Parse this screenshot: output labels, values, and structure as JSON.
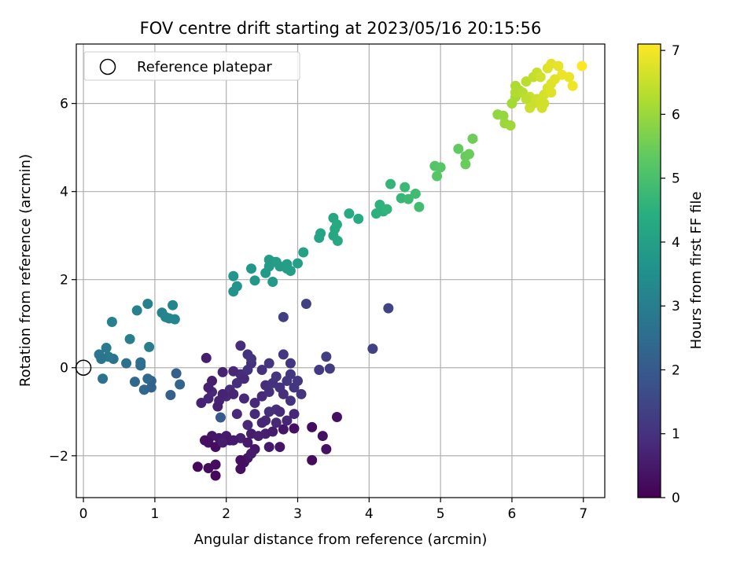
{
  "chart_data": {
    "type": "scatter",
    "title": "FOV centre drift starting at 2023/05/16 20:15:56",
    "xlabel": "Angular distance from reference (arcmin)",
    "ylabel": "Rotation from reference (arcmin)",
    "xlim": [
      -0.1,
      7.3
    ],
    "ylim": [
      -2.95,
      7.35
    ],
    "x_ticks": [
      0,
      1,
      2,
      3,
      4,
      5,
      6,
      7
    ],
    "x_tick_labels": [
      "0",
      "1",
      "2",
      "3",
      "4",
      "5",
      "6",
      "7"
    ],
    "y_ticks": [
      -2,
      0,
      2,
      4,
      6
    ],
    "y_tick_labels": [
      "−2",
      "0",
      "2",
      "4",
      "6"
    ],
    "grid": true,
    "legend": {
      "placement": "upper-left",
      "entries": [
        {
          "label": "Reference platepar",
          "marker": "open-circle"
        }
      ]
    },
    "reference_point": {
      "x": 0,
      "y": 0
    },
    "colorbar": {
      "label": "Hours from first FF file",
      "colormap": "viridis",
      "range": [
        0,
        7.1
      ],
      "ticks": [
        0,
        1,
        2,
        3,
        4,
        5,
        6,
        7
      ],
      "tick_labels": [
        "0",
        "1",
        "2",
        "3",
        "4",
        "5",
        "6",
        "7"
      ]
    },
    "points": [
      [
        1.6,
        -2.25,
        0.15
      ],
      [
        1.75,
        -2.28,
        0.2
      ],
      [
        1.85,
        -2.45,
        0.15
      ],
      [
        1.85,
        -2.2,
        0.25
      ],
      [
        2.2,
        -2.3,
        0.3
      ],
      [
        2.25,
        -2.15,
        0.35
      ],
      [
        2.3,
        -2.05,
        0.4
      ],
      [
        2.2,
        -2.1,
        0.3
      ],
      [
        1.7,
        -1.65,
        0.35
      ],
      [
        1.8,
        -1.55,
        0.4
      ],
      [
        1.75,
        -1.7,
        0.3
      ],
      [
        1.85,
        -1.8,
        0.25
      ],
      [
        1.9,
        -1.6,
        0.45
      ],
      [
        2.0,
        -1.55,
        0.5
      ],
      [
        2.05,
        -1.65,
        0.4
      ],
      [
        1.95,
        -1.7,
        0.55
      ],
      [
        2.2,
        -1.6,
        0.6
      ],
      [
        2.1,
        -1.65,
        0.5
      ],
      [
        2.3,
        -1.7,
        0.5
      ],
      [
        2.35,
        -1.5,
        0.55
      ],
      [
        2.45,
        -1.55,
        0.6
      ],
      [
        2.4,
        -1.85,
        0.45
      ],
      [
        2.35,
        -1.95,
        0.5
      ],
      [
        2.55,
        -1.5,
        0.6
      ],
      [
        2.65,
        -1.45,
        0.55
      ],
      [
        2.75,
        -1.8,
        0.4
      ],
      [
        2.6,
        -1.8,
        0.5
      ],
      [
        2.8,
        -1.4,
        0.4
      ],
      [
        2.95,
        -1.38,
        0.3
      ],
      [
        3.2,
        -1.35,
        0.25
      ],
      [
        3.2,
        -2.1,
        0.2
      ],
      [
        3.35,
        -1.55,
        0.3
      ],
      [
        3.4,
        -1.85,
        0.35
      ],
      [
        3.55,
        -1.12,
        0.3
      ],
      [
        1.65,
        -0.8,
        0.7
      ],
      [
        1.75,
        -0.7,
        0.75
      ],
      [
        1.8,
        -0.55,
        0.8
      ],
      [
        1.9,
        -0.75,
        0.7
      ],
      [
        2.0,
        -0.65,
        0.8
      ],
      [
        2.05,
        -0.5,
        0.9
      ],
      [
        2.15,
        -0.35,
        0.95
      ],
      [
        2.2,
        -0.15,
        0.9
      ],
      [
        2.25,
        -0.25,
        0.85
      ],
      [
        2.3,
        -0.05,
        1.0
      ],
      [
        2.35,
        0.1,
        0.95
      ],
      [
        2.2,
        0.5,
        0.9
      ],
      [
        2.3,
        0.3,
        1.0
      ],
      [
        2.35,
        0.2,
        1.05
      ],
      [
        2.4,
        -0.8,
        0.8
      ],
      [
        2.5,
        -0.65,
        0.85
      ],
      [
        2.55,
        -0.4,
        0.9
      ],
      [
        2.6,
        -0.55,
        0.95
      ],
      [
        2.65,
        -0.35,
        1.0
      ],
      [
        2.7,
        -0.2,
        1.05
      ],
      [
        2.75,
        -0.45,
        1.0
      ],
      [
        2.8,
        -0.6,
        0.95
      ],
      [
        2.85,
        -0.3,
        1.1
      ],
      [
        2.9,
        -0.15,
        1.15
      ],
      [
        2.95,
        -0.45,
        1.05
      ],
      [
        3.0,
        -0.3,
        1.1
      ],
      [
        3.05,
        -0.6,
        1.05
      ],
      [
        2.9,
        -0.75,
        1.0
      ],
      [
        2.7,
        -0.95,
        0.95
      ],
      [
        2.6,
        -1.0,
        0.9
      ],
      [
        2.75,
        -1.0,
        0.85
      ],
      [
        2.55,
        -1.2,
        0.8
      ],
      [
        2.3,
        -1.3,
        0.8
      ],
      [
        2.15,
        -1.05,
        0.85
      ],
      [
        2.4,
        -1.05,
        0.85
      ],
      [
        2.5,
        -1.25,
        0.75
      ],
      [
        2.7,
        -1.25,
        0.8
      ],
      [
        2.85,
        -1.2,
        0.75
      ],
      [
        2.95,
        -1.05,
        0.8
      ],
      [
        1.8,
        -0.3,
        0.6
      ],
      [
        1.75,
        -0.45,
        0.65
      ],
      [
        1.95,
        -0.1,
        0.7
      ],
      [
        2.1,
        -0.6,
        0.75
      ],
      [
        2.25,
        -0.7,
        0.8
      ],
      [
        2.5,
        -0.05,
        1.0
      ],
      [
        2.6,
        0.1,
        1.05
      ],
      [
        2.8,
        0.3,
        1.1
      ],
      [
        2.9,
        0.1,
        1.1
      ],
      [
        3.3,
        -0.05,
        1.2
      ],
      [
        3.45,
        -0.02,
        1.25
      ],
      [
        3.4,
        0.25,
        1.3
      ],
      [
        3.12,
        1.45,
        1.35
      ],
      [
        2.8,
        1.15,
        1.3
      ],
      [
        4.05,
        0.43,
        1.4
      ],
      [
        4.27,
        1.35,
        1.45
      ],
      [
        1.72,
        0.22,
        0.6
      ],
      [
        1.95,
        -0.6,
        0.7
      ],
      [
        1.88,
        -0.88,
        0.65
      ],
      [
        2.1,
        -0.08,
        0.8
      ],
      [
        1.92,
        -1.13,
        2.0
      ],
      [
        1.3,
        -0.13,
        2.2
      ],
      [
        1.35,
        -0.38,
        2.3
      ],
      [
        1.22,
        -0.62,
        2.2
      ],
      [
        0.95,
        -0.3,
        2.3
      ],
      [
        0.9,
        -0.25,
        2.4
      ],
      [
        0.85,
        -0.5,
        2.35
      ],
      [
        0.95,
        -0.45,
        2.25
      ],
      [
        0.8,
        0.05,
        2.5
      ],
      [
        0.8,
        0.12,
        2.55
      ],
      [
        0.72,
        -0.32,
        2.4
      ],
      [
        0.6,
        0.1,
        2.6
      ],
      [
        0.42,
        0.2,
        2.7
      ],
      [
        0.35,
        0.25,
        2.8
      ],
      [
        0.22,
        0.3,
        2.75
      ],
      [
        0.25,
        0.2,
        2.7
      ],
      [
        0.27,
        -0.25,
        2.65
      ],
      [
        0.32,
        0.45,
        2.9
      ],
      [
        0.65,
        0.65,
        3.0
      ],
      [
        0.92,
        0.47,
        3.0
      ],
      [
        0.4,
        1.04,
        3.05
      ],
      [
        0.75,
        1.3,
        3.1
      ],
      [
        0.9,
        1.45,
        3.1
      ],
      [
        1.1,
        1.25,
        3.15
      ],
      [
        1.15,
        1.15,
        3.2
      ],
      [
        1.2,
        1.12,
        3.2
      ],
      [
        1.28,
        1.1,
        3.25
      ],
      [
        1.25,
        1.42,
        3.2
      ],
      [
        2.1,
        1.73,
        3.6
      ],
      [
        2.15,
        1.85,
        3.65
      ],
      [
        2.1,
        2.08,
        3.7
      ],
      [
        2.35,
        2.25,
        3.7
      ],
      [
        2.4,
        1.98,
        3.75
      ],
      [
        2.55,
        2.15,
        3.8
      ],
      [
        2.6,
        2.3,
        3.85
      ],
      [
        2.6,
        2.45,
        3.9
      ],
      [
        2.65,
        2.4,
        3.85
      ],
      [
        2.7,
        2.4,
        3.9
      ],
      [
        2.65,
        1.95,
        3.8
      ],
      [
        2.75,
        2.3,
        3.9
      ],
      [
        2.85,
        2.25,
        3.9
      ],
      [
        2.9,
        2.2,
        3.95
      ],
      [
        2.85,
        2.35,
        3.95
      ],
      [
        3.0,
        2.37,
        4.0
      ],
      [
        3.08,
        2.62,
        4.05
      ],
      [
        3.3,
        2.95,
        4.1
      ],
      [
        3.32,
        3.05,
        4.15
      ],
      [
        3.5,
        3.0,
        4.2
      ],
      [
        3.52,
        3.15,
        4.25
      ],
      [
        3.5,
        3.4,
        4.2
      ],
      [
        3.55,
        3.25,
        4.3
      ],
      [
        3.56,
        2.88,
        4.25
      ],
      [
        3.72,
        3.5,
        4.3
      ],
      [
        3.85,
        3.38,
        4.35
      ],
      [
        4.1,
        3.5,
        4.5
      ],
      [
        4.15,
        3.7,
        4.55
      ],
      [
        4.2,
        3.55,
        4.5
      ],
      [
        4.25,
        3.6,
        4.6
      ],
      [
        4.3,
        4.17,
        4.65
      ],
      [
        4.45,
        3.85,
        4.7
      ],
      [
        4.5,
        4.1,
        4.75
      ],
      [
        4.55,
        3.83,
        4.8
      ],
      [
        4.65,
        3.95,
        4.85
      ],
      [
        4.7,
        3.65,
        4.9
      ],
      [
        4.92,
        4.58,
        5.15
      ],
      [
        4.95,
        4.35,
        5.2
      ],
      [
        5.0,
        4.55,
        5.2
      ],
      [
        5.25,
        4.97,
        5.35
      ],
      [
        5.35,
        4.8,
        5.4
      ],
      [
        5.4,
        4.85,
        5.45
      ],
      [
        5.35,
        4.62,
        5.45
      ],
      [
        5.45,
        5.2,
        5.5
      ],
      [
        5.8,
        5.75,
        5.9
      ],
      [
        5.88,
        5.72,
        5.95
      ],
      [
        5.9,
        5.55,
        6.0
      ],
      [
        5.98,
        5.5,
        6.05
      ],
      [
        6.0,
        6.0,
        6.1
      ],
      [
        6.05,
        6.15,
        6.15
      ],
      [
        6.05,
        6.4,
        6.2
      ],
      [
        6.1,
        6.3,
        6.2
      ],
      [
        6.05,
        6.25,
        6.25
      ],
      [
        6.15,
        6.25,
        6.3
      ],
      [
        6.2,
        6.5,
        6.35
      ],
      [
        6.3,
        6.6,
        6.45
      ],
      [
        6.35,
        6.7,
        6.5
      ],
      [
        6.25,
        6.15,
        6.5
      ],
      [
        6.3,
        6.0,
        6.55
      ],
      [
        6.35,
        6.1,
        6.55
      ],
      [
        6.25,
        5.9,
        6.55
      ],
      [
        6.4,
        6.05,
        6.6
      ],
      [
        6.45,
        6.2,
        6.65
      ],
      [
        6.42,
        5.9,
        6.65
      ],
      [
        6.5,
        6.35,
        6.7
      ],
      [
        6.55,
        6.45,
        6.75
      ],
      [
        6.5,
        6.8,
        6.75
      ],
      [
        6.55,
        6.9,
        6.8
      ],
      [
        6.65,
        6.85,
        6.85
      ],
      [
        6.7,
        6.65,
        6.9
      ],
      [
        6.8,
        6.6,
        6.9
      ],
      [
        6.85,
        6.4,
        6.95
      ],
      [
        6.98,
        6.85,
        7.1
      ],
      [
        6.4,
        6.6,
        6.6
      ],
      [
        6.2,
        6.1,
        6.4
      ],
      [
        6.45,
        6.0,
        6.6
      ],
      [
        6.55,
        6.25,
        6.75
      ],
      [
        6.6,
        6.55,
        6.8
      ]
    ]
  }
}
